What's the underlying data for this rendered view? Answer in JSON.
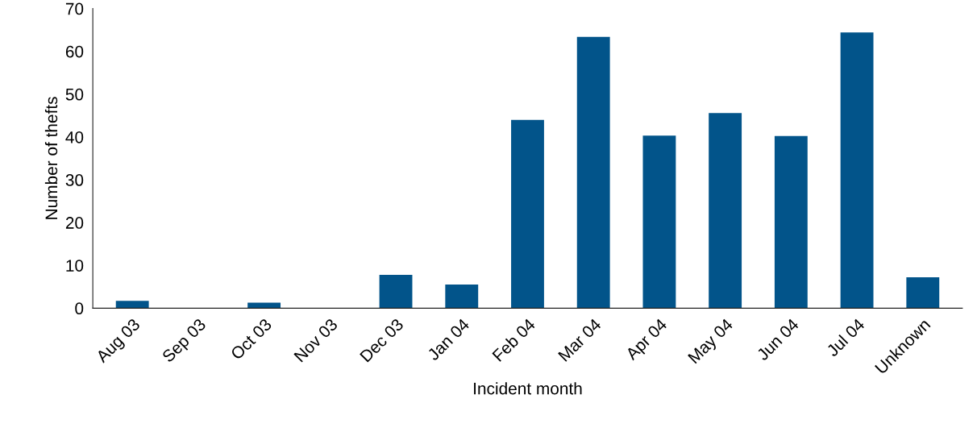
{
  "chart_data": {
    "type": "bar",
    "xlabel": "Incident month",
    "ylabel": "Number of thefts",
    "categories": [
      "Aug 03",
      "Sep 03",
      "Oct 03",
      "Nov 03",
      "Dec 03",
      "Jan 04",
      "Feb 04",
      "Mar 04",
      "Apr 04",
      "May 04",
      "Jun 04",
      "Jul 04",
      "Unknown"
    ],
    "values": [
      1.7,
      0,
      1.3,
      0,
      7.8,
      5.5,
      44,
      63.4,
      40.3,
      45.6,
      40.2,
      64.4,
      7.2
    ],
    "color": "#02548a",
    "ylim": [
      0,
      70
    ],
    "yticks": [
      0,
      10,
      20,
      30,
      40,
      50,
      60,
      70
    ],
    "grid": false,
    "legend": false
  }
}
